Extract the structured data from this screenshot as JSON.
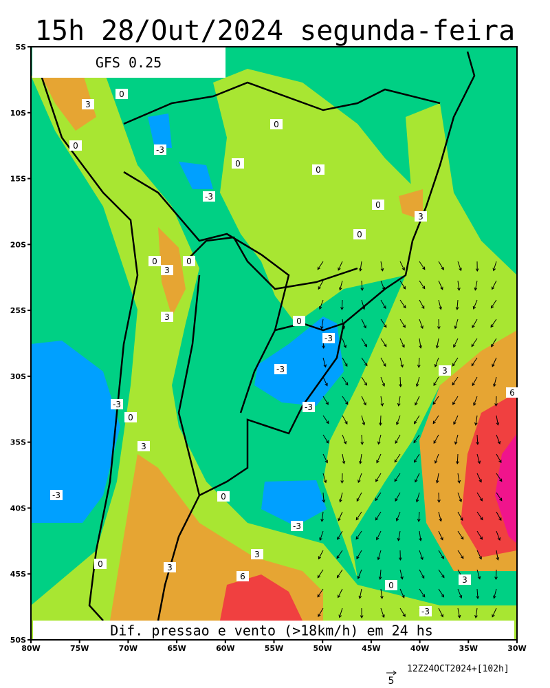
{
  "header": {
    "title": "15h 28/Out/2024 segunda-feira",
    "model": "GFS 0.25"
  },
  "map": {
    "lat_labels": [
      "5S",
      "10S",
      "15S",
      "20S",
      "25S",
      "30S",
      "35S",
      "40S",
      "45S",
      "50S"
    ],
    "lon_labels": [
      "80W",
      "75W",
      "70W",
      "65W",
      "60W",
      "55W",
      "50W",
      "45W",
      "40W",
      "35W",
      "30W"
    ],
    "contour_labels": [
      "0",
      "3",
      "0",
      "-3",
      "0",
      "0",
      "0",
      "-3",
      "0",
      "3",
      "0",
      "0",
      "0",
      "3",
      "3",
      "0",
      "-3",
      "-3",
      "3",
      "6",
      "-3",
      "-3",
      "0",
      "3",
      "-3",
      "0",
      "-3",
      "3",
      "6",
      "3",
      "0",
      "0",
      "3",
      "-3"
    ],
    "caption": "Dif. pressao e vento (>18km/h) em 24 hs"
  },
  "footer": {
    "arrow_scale": "5",
    "run": "12Z24OCT2024+[102h]"
  }
}
